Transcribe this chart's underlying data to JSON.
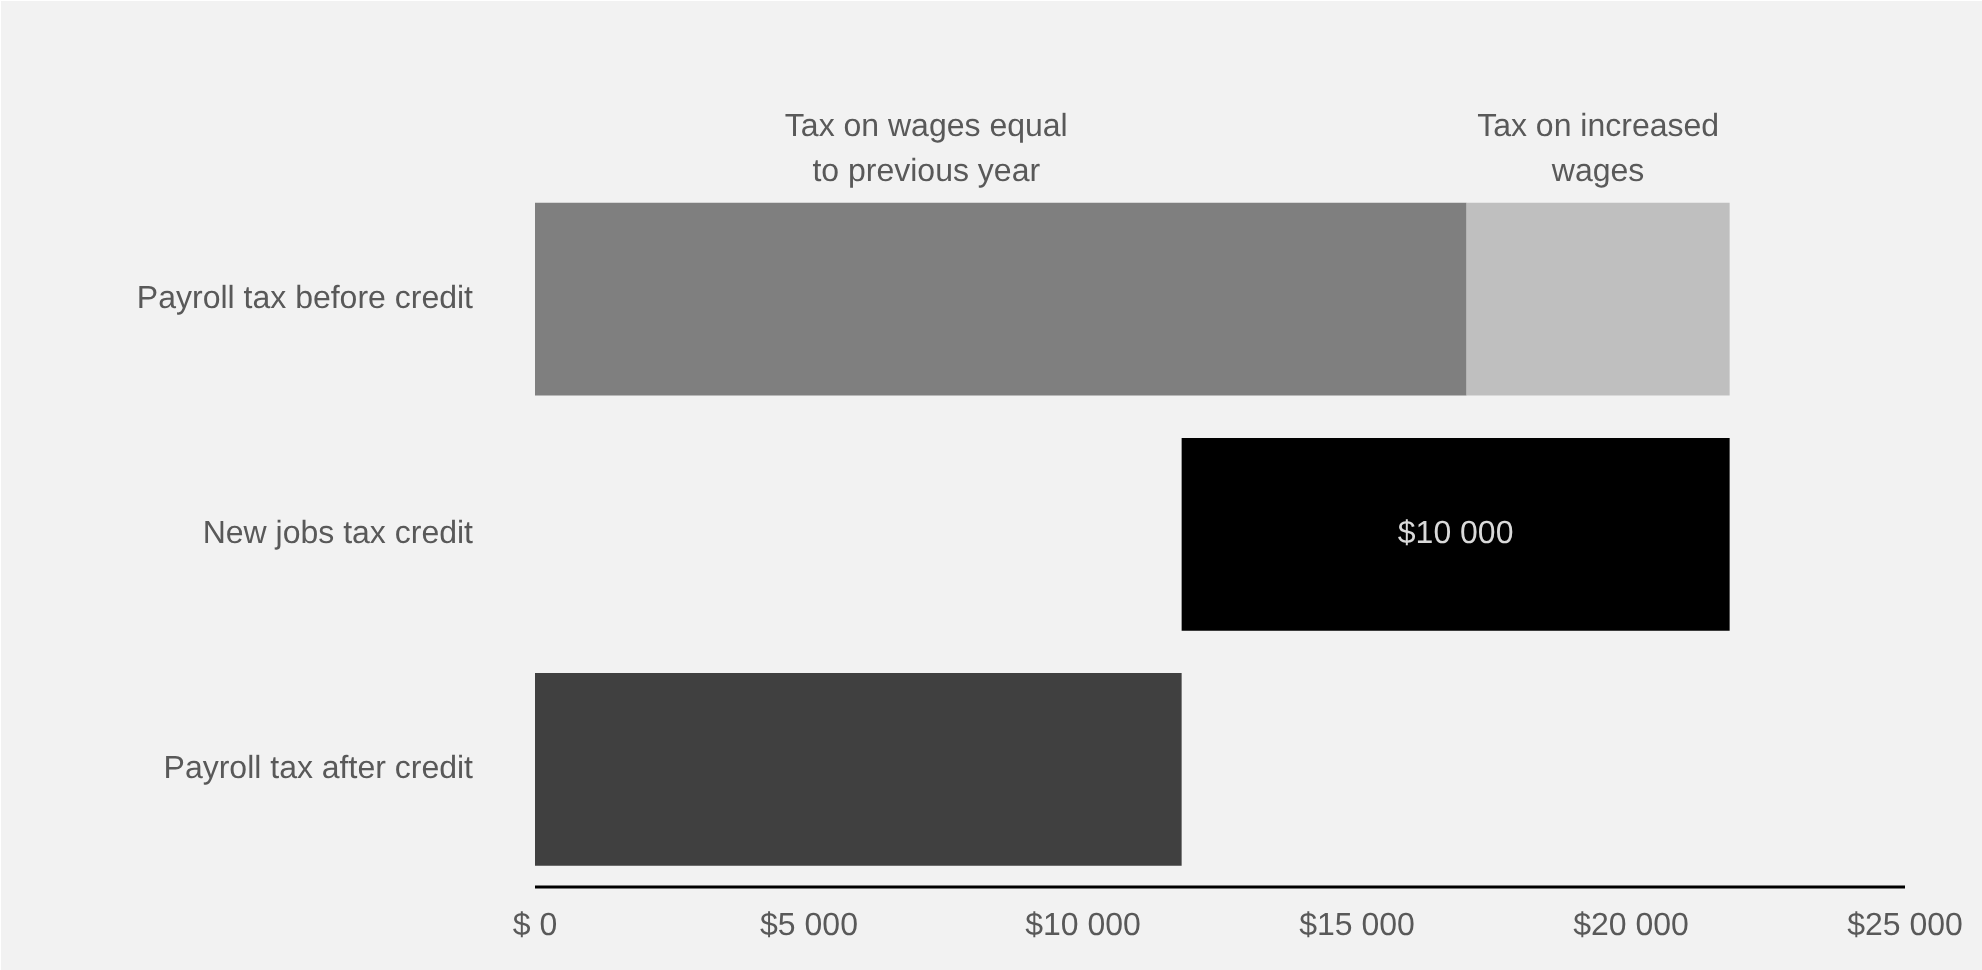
{
  "chart_data": {
    "type": "bar",
    "orientation": "horizontal",
    "categories": [
      "Payroll tax before credit",
      "New jobs tax credit",
      "Payroll tax after credit"
    ],
    "series": [
      {
        "name": "Tax on wages equal to previous year",
        "color": "#7f7f7f",
        "values": [
          17000,
          null,
          null
        ]
      },
      {
        "name": "Tax on increased wages",
        "color": "#bfbfbf",
        "values": [
          4800,
          null,
          null
        ],
        "base": [
          17000,
          null,
          null
        ]
      },
      {
        "color": "#000000",
        "values": [
          null,
          10000,
          null
        ],
        "base": [
          null,
          11800,
          null
        ],
        "value_labels": [
          null,
          "$10 000",
          null
        ]
      },
      {
        "color": "#404040",
        "values": [
          null,
          null,
          11800
        ]
      }
    ],
    "xlim": [
      0,
      25000
    ],
    "xticks": [
      {
        "value": 0,
        "label": "$ 0"
      },
      {
        "value": 5000,
        "label": "$5 000"
      },
      {
        "value": 10000,
        "label": "$10 000"
      },
      {
        "value": 15000,
        "label": "$15 000"
      },
      {
        "value": 20000,
        "label": "$20 000"
      },
      {
        "value": 25000,
        "label": "$25 000"
      }
    ],
    "grid": false,
    "legend": false
  }
}
